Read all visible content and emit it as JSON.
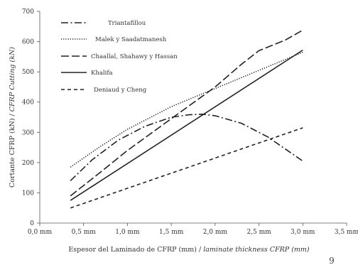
{
  "chart_data": {
    "type": "line",
    "title": "",
    "xlabel_main": "Espesor del Laminado de CFRP (mm) / ",
    "xlabel_italic": "laminate thickness CFRP (mm)",
    "ylabel_main": "Cortante CFRP (kN) / ",
    "ylabel_italic": "CFRP Cutting (kN)",
    "xlim": [
      0,
      3.5
    ],
    "ylim": [
      0,
      700
    ],
    "x_ticks": [
      0,
      0.5,
      1.0,
      1.5,
      2.0,
      2.5,
      3.0,
      3.5
    ],
    "x_tick_labels": [
      "0,0 mm",
      "0,5 mm",
      "1,0 mm",
      "1,5 mm",
      "2,0 mm",
      "2,5 mm",
      "3,0 mm",
      "3,5 mm"
    ],
    "y_ticks": [
      0,
      100,
      200,
      300,
      400,
      500,
      600,
      700
    ],
    "y_tick_labels": [
      "0",
      "100",
      "200",
      "300",
      "400",
      "500",
      "600",
      "700"
    ],
    "grid": false,
    "legend_position": "top-left",
    "series": [
      {
        "name": "Triantafillou",
        "dash": "dashdot",
        "color": "#222222",
        "x": [
          0.35,
          0.6,
          0.9,
          1.2,
          1.5,
          1.7,
          1.85,
          2.0,
          2.3,
          2.6,
          2.8,
          3.0
        ],
        "y": [
          140,
          210,
          275,
          320,
          350,
          358,
          360,
          355,
          330,
          285,
          245,
          205
        ]
      },
      {
        "name": "Malek y Saadatmanesh",
        "dash": "dotted",
        "color": "#222222",
        "x": [
          0.35,
          0.7,
          1.0,
          1.5,
          2.0,
          2.5,
          3.0
        ],
        "y": [
          185,
          255,
          310,
          385,
          445,
          505,
          565
        ]
      },
      {
        "name": "Chaallal, Shahawy y Hassan",
        "dash": "longdash",
        "color": "#222222",
        "x": [
          0.35,
          0.7,
          1.0,
          1.5,
          2.0,
          2.3,
          2.5,
          2.8,
          3.0
        ],
        "y": [
          90,
          170,
          240,
          345,
          450,
          525,
          570,
          605,
          638
        ]
      },
      {
        "name": "Khalifa",
        "dash": "solid",
        "color": "#222222",
        "x": [
          0.35,
          3.0
        ],
        "y": [
          75,
          572
        ]
      },
      {
        "name": "Deniaud y Cheng",
        "dash": "dashed",
        "color": "#222222",
        "x": [
          0.35,
          3.0
        ],
        "y": [
          50,
          315
        ]
      }
    ]
  },
  "page_number": "9"
}
